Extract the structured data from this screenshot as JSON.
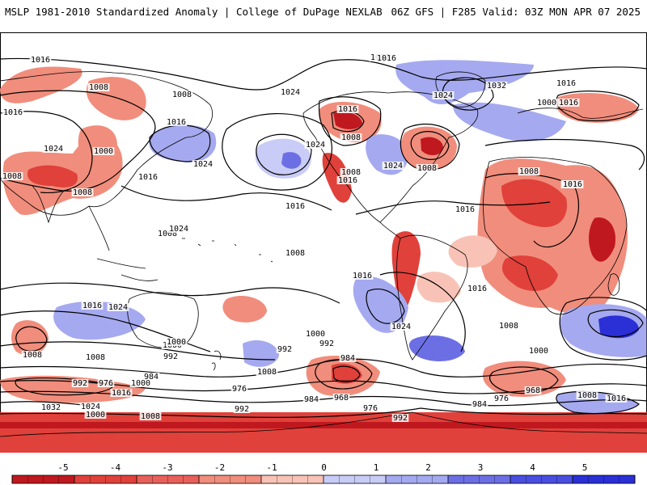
{
  "header": {
    "left_title": "MSLP 1981-2010 Standardized Anomaly | College of DuPage NEXLAB",
    "right_title": "06Z GFS | F285 Valid: 03Z MON APR 07 2025"
  },
  "colors": {
    "neg_strong": "#c0181f",
    "neg_mid": "#e0413a",
    "neg_light": "#f18d7c",
    "neg_faint": "#f8c3b6",
    "pos_faint": "#c9ccf6",
    "pos_light": "#a5a9ef",
    "pos_mid": "#6c6fe4",
    "pos_strong": "#2a2fd6",
    "isobar": "#000000",
    "land": "#000000"
  },
  "isobar_labels": [
    "1016",
    "1032",
    "1008",
    "1024",
    "1016",
    "1016",
    "1016",
    "1024",
    "1032",
    "1016",
    "1000",
    "1008",
    "1016",
    "1024",
    "1000",
    "1008",
    "1024",
    "1024",
    "1016",
    "1008",
    "1008",
    "1024",
    "1008",
    "1016",
    "1016",
    "1016",
    "1008",
    "1008",
    "1008",
    "1016",
    "1016",
    "1008",
    "1016",
    "1016",
    "1016",
    "1024",
    "1016",
    "1024",
    "1008",
    "1000",
    "1000",
    "992",
    "984",
    "992",
    "1000",
    "1008",
    "1024",
    "1008",
    "992",
    "976",
    "984",
    "1000",
    "1016",
    "992",
    "976",
    "984",
    "968",
    "976",
    "992",
    "984",
    "976",
    "968",
    "1008",
    "1016",
    "1032",
    "1024",
    "1000",
    "1008",
    "992",
    "1000",
    "1008"
  ],
  "colorbar": {
    "ticks": [
      "-5",
      "-4",
      "-3",
      "-2",
      "-1",
      "0",
      "1",
      "2",
      "3",
      "4",
      "5"
    ]
  }
}
